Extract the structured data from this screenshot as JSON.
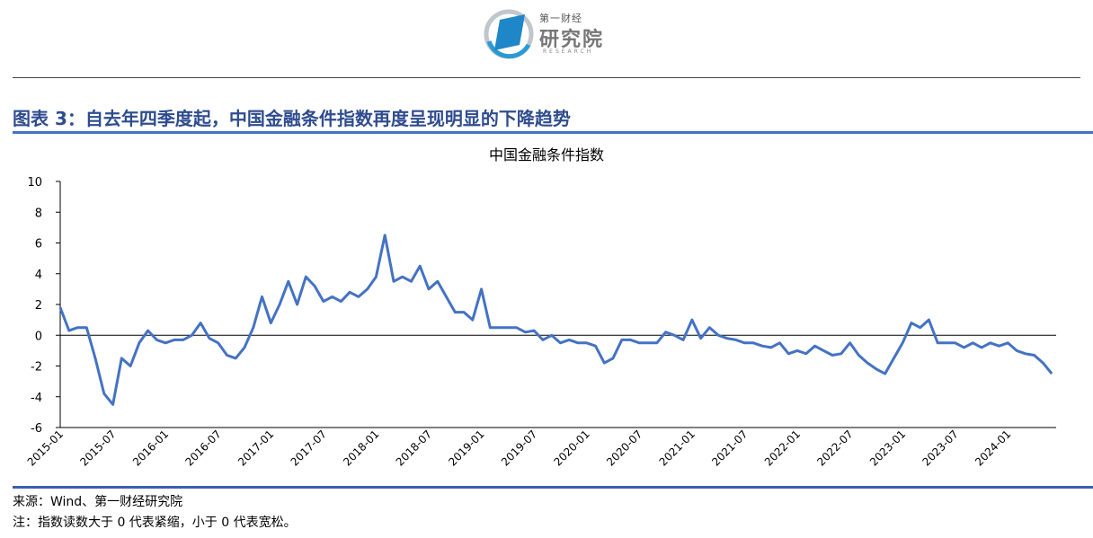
{
  "header": {
    "logo_cn_small": "第一财经",
    "logo_cn_big": "研究院",
    "logo_en": "RESEARCH"
  },
  "figure": {
    "title": "图表 3：自去年四季度起，中国金融条件指数再度呈现明显的下降趋势"
  },
  "footer": {
    "source": "来源：Wind、第一财经研究院",
    "note": "注：指数读数大于 0 代表紧缩，小于 0 代表宽松。"
  },
  "colors": {
    "line": "#4472c4",
    "title": "#2e4c8f",
    "rule": "#4472c4"
  },
  "chart_data": {
    "type": "line",
    "title": "中国金融条件指数",
    "xlabel": "",
    "ylabel": "",
    "ylim": [
      -6,
      10
    ],
    "yticks": [
      -6,
      -4,
      -2,
      0,
      2,
      4,
      6,
      8,
      10
    ],
    "xticks": [
      "2015-01",
      "2015-07",
      "2016-01",
      "2016-07",
      "2017-01",
      "2017-07",
      "2018-01",
      "2018-07",
      "2019-01",
      "2019-07",
      "2020-01",
      "2020-07",
      "2021-01",
      "2021-07",
      "2022-01",
      "2022-07",
      "2023-01",
      "2023-07",
      "2024-01"
    ],
    "grid": false,
    "legend": "none",
    "series": [
      {
        "x": [
          "2015-01",
          "2015-02",
          "2015-03",
          "2015-04",
          "2015-05",
          "2015-06",
          "2015-07",
          "2015-08",
          "2015-09",
          "2015-10",
          "2015-11",
          "2015-12",
          "2016-01",
          "2016-02",
          "2016-03",
          "2016-04",
          "2016-05",
          "2016-06",
          "2016-07",
          "2016-08",
          "2016-09",
          "2016-10",
          "2016-11",
          "2016-12",
          "2017-01",
          "2017-02",
          "2017-03",
          "2017-04",
          "2017-05",
          "2017-06",
          "2017-07",
          "2017-08",
          "2017-09",
          "2017-10",
          "2017-11",
          "2017-12",
          "2018-01",
          "2018-02",
          "2018-03",
          "2018-04",
          "2018-05",
          "2018-06",
          "2018-07",
          "2018-08",
          "2018-09",
          "2018-10",
          "2018-11",
          "2018-12",
          "2019-01",
          "2019-02",
          "2019-03",
          "2019-04",
          "2019-05",
          "2019-06",
          "2019-07",
          "2019-08",
          "2019-09",
          "2019-10",
          "2019-11",
          "2019-12",
          "2020-01",
          "2020-02",
          "2020-03",
          "2020-04",
          "2020-05",
          "2020-06",
          "2020-07",
          "2020-08",
          "2020-09",
          "2020-10",
          "2020-11",
          "2020-12",
          "2021-01",
          "2021-02",
          "2021-03",
          "2021-04",
          "2021-05",
          "2021-06",
          "2021-07",
          "2021-08",
          "2021-09",
          "2021-10",
          "2021-11",
          "2021-12",
          "2022-01",
          "2022-02",
          "2022-03",
          "2022-04",
          "2022-05",
          "2022-06",
          "2022-07",
          "2022-08",
          "2022-09",
          "2022-10",
          "2022-11",
          "2022-12",
          "2023-01",
          "2023-02",
          "2023-03",
          "2023-04",
          "2023-05",
          "2023-06",
          "2023-07",
          "2023-08",
          "2023-09",
          "2023-10",
          "2023-11",
          "2023-12",
          "2024-01",
          "2024-02",
          "2024-03",
          "2024-04",
          "2024-05",
          "2024-06"
        ],
        "values": [
          1.8,
          0.3,
          0.5,
          0.5,
          -1.5,
          -3.8,
          -4.5,
          -1.5,
          -2.0,
          -0.5,
          0.3,
          -0.3,
          -0.5,
          -0.3,
          -0.3,
          0.0,
          0.8,
          -0.2,
          -0.5,
          -1.3,
          -1.5,
          -0.8,
          0.5,
          2.5,
          0.8,
          2.0,
          3.5,
          2.0,
          3.8,
          3.2,
          2.2,
          2.5,
          2.2,
          2.8,
          2.5,
          3.0,
          3.8,
          6.5,
          3.5,
          3.8,
          3.5,
          4.5,
          3.0,
          3.5,
          2.5,
          1.5,
          1.5,
          1.0,
          3.0,
          0.5,
          0.5,
          0.5,
          0.5,
          0.2,
          0.3,
          -0.3,
          0.0,
          -0.5,
          -0.3,
          -0.5,
          -0.5,
          -0.7,
          -1.8,
          -1.5,
          -0.3,
          -0.3,
          -0.5,
          -0.5,
          -0.5,
          0.2,
          0.0,
          -0.3,
          1.0,
          -0.2,
          0.5,
          0.0,
          -0.2,
          -0.3,
          -0.5,
          -0.5,
          -0.7,
          -0.8,
          -0.5,
          -1.2,
          -1.0,
          -1.2,
          -0.7,
          -1.0,
          -1.3,
          -1.2,
          -0.5,
          -1.3,
          -1.8,
          -2.2,
          -2.5,
          -1.5,
          -0.5,
          0.8,
          0.5,
          1.0,
          -0.5,
          -0.5,
          -0.5,
          -0.8,
          -0.5,
          -0.8,
          -0.5,
          -0.7,
          -0.5,
          -1.0,
          -1.2,
          -1.3,
          -1.8,
          -2.5
        ]
      }
    ]
  }
}
